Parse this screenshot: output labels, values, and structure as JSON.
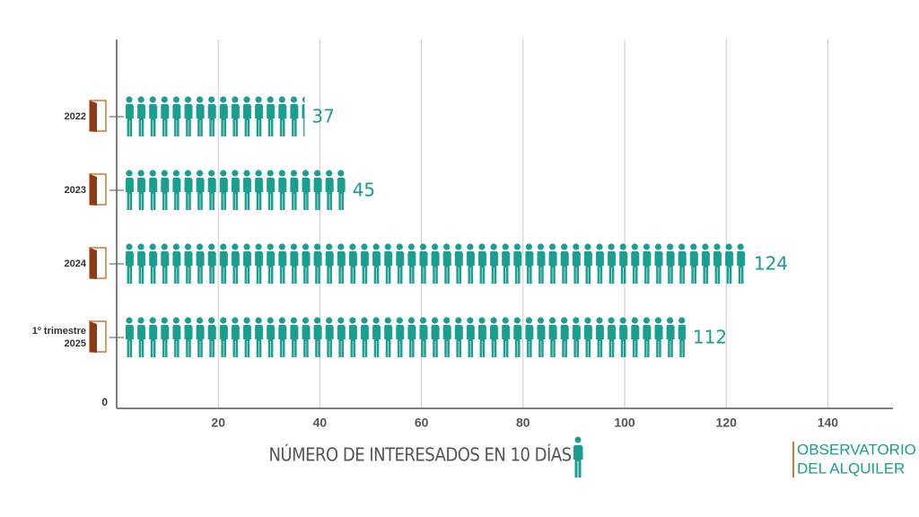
{
  "chart_data": {
    "type": "pictograph_bar",
    "categories": [
      "2022",
      "2023",
      "2024",
      "1º trimestre 2025"
    ],
    "values": [
      37,
      45,
      124,
      112
    ],
    "color": "#1a9e8f",
    "xlim": [
      0,
      153
    ],
    "xticks": [
      0,
      20,
      40,
      60,
      80,
      100,
      120,
      140
    ],
    "grid": true,
    "x_label": "NÚMERO DE INTERESADOS EN 10 DÍAS",
    "annotations": [
      "OBSERVATORIO",
      "DEL ALQUILER"
    ]
  }
}
